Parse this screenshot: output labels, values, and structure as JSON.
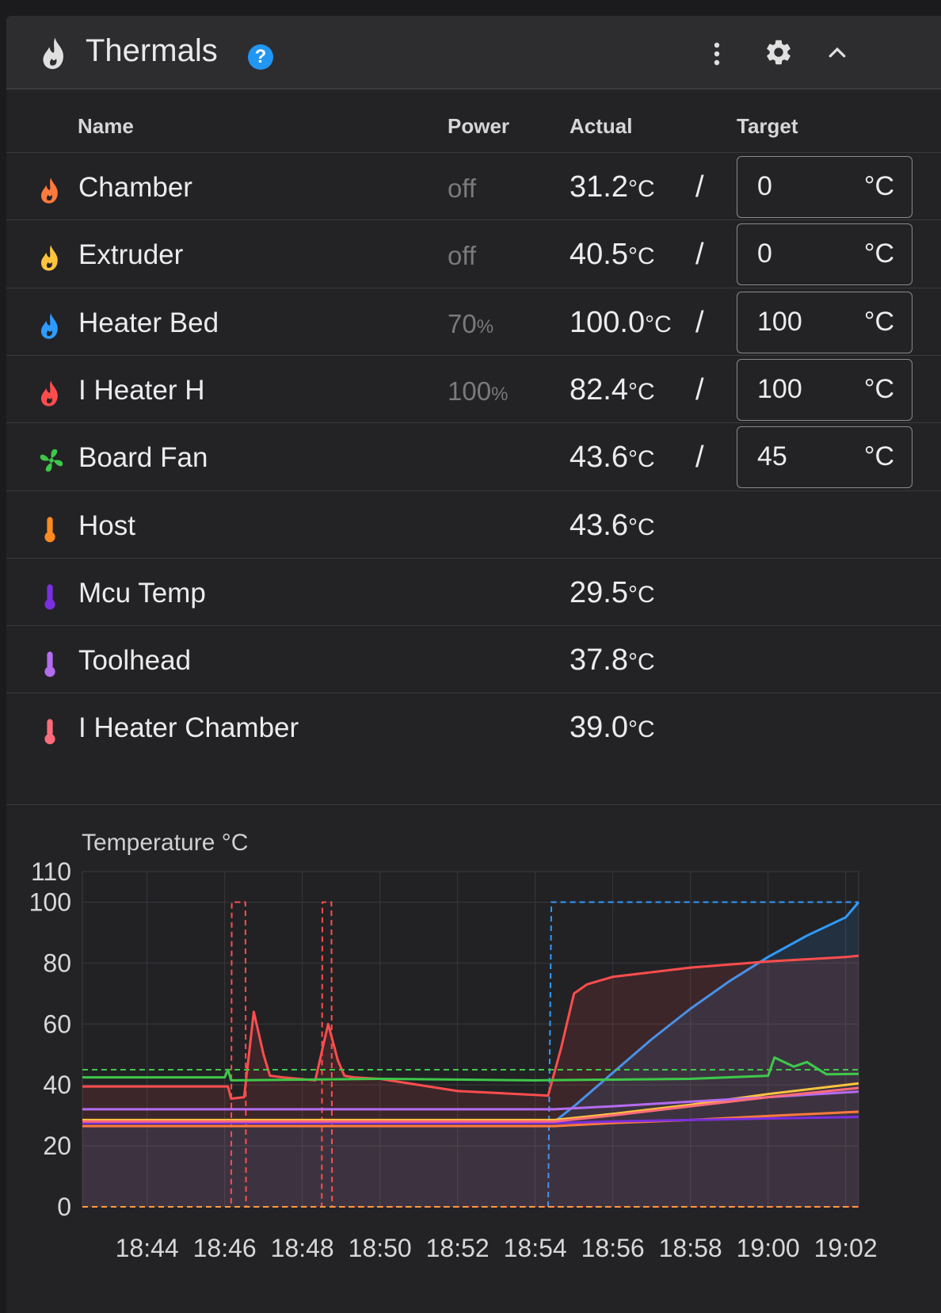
{
  "header": {
    "title": "Thermals",
    "help_icon": "help-circle-icon",
    "menu_icon": "dots-vertical-icon",
    "settings_icon": "gear-icon",
    "collapse_icon": "chevron-up-icon"
  },
  "columns": {
    "name": "Name",
    "power": "Power",
    "actual": "Actual",
    "target": "Target"
  },
  "rows": [
    {
      "name": "Chamber",
      "icon": "fire-icon",
      "color": "#ff7a3d",
      "power": "off",
      "power_unit": "",
      "actual": "31.2",
      "unit": "°C",
      "slash": "/",
      "target": "0",
      "target_unit": "°C"
    },
    {
      "name": "Extruder",
      "icon": "fire-icon",
      "color": "#ffc43d",
      "power": "off",
      "power_unit": "",
      "actual": "40.5",
      "unit": "°C",
      "slash": "/",
      "target": "0",
      "target_unit": "°C"
    },
    {
      "name": "Heater Bed",
      "icon": "fire-icon",
      "color": "#2f9bff",
      "power": "70",
      "power_unit": "%",
      "actual": "100.0",
      "unit": "°C",
      "slash": "/",
      "target": "100",
      "target_unit": "°C"
    },
    {
      "name": "I Heater H",
      "icon": "fire-icon",
      "color": "#ff4d4d",
      "power": "100",
      "power_unit": "%",
      "actual": "82.4",
      "unit": "°C",
      "slash": "/",
      "target": "100",
      "target_unit": "°C"
    },
    {
      "name": "Board Fan",
      "icon": "fan-icon",
      "color": "#3ec94a",
      "power": "",
      "power_unit": "",
      "actual": "43.6",
      "unit": "°C",
      "slash": "/",
      "target": "45",
      "target_unit": "°C"
    },
    {
      "name": "Host",
      "icon": "thermometer-icon",
      "color": "#ff8a1f",
      "power": "",
      "power_unit": "",
      "actual": "43.6",
      "unit": "°C"
    },
    {
      "name": "Mcu Temp",
      "icon": "thermometer-icon",
      "color": "#7a2fe0",
      "power": "",
      "power_unit": "",
      "actual": "29.5",
      "unit": "°C"
    },
    {
      "name": "Toolhead",
      "icon": "thermometer-icon",
      "color": "#b46cf0",
      "power": "",
      "power_unit": "",
      "actual": "37.8",
      "unit": "°C"
    },
    {
      "name": "I Heater Chamber",
      "icon": "thermometer-icon",
      "color": "#ff6b7a",
      "power": "",
      "power_unit": "",
      "actual": "39.0",
      "unit": "°C"
    }
  ],
  "chart_data": {
    "type": "line",
    "ylabel": "Temperature °C",
    "ylim": [
      0,
      110
    ],
    "yticks": [
      0,
      20,
      40,
      60,
      80,
      100,
      110
    ],
    "xlim": [
      "18:42:20",
      "19:02:20"
    ],
    "xticks": [
      "18:44",
      "18:46",
      "18:48",
      "18:50",
      "18:52",
      "18:54",
      "18:56",
      "18:58",
      "19:00",
      "19:02"
    ],
    "grid": true,
    "series": [
      {
        "name": "Heater Bed",
        "color": "#2f9bff",
        "style": "solid",
        "fill": true,
        "x": [
          "18:42:20",
          "18:54:30",
          "18:55",
          "18:56",
          "18:57",
          "18:58",
          "18:59",
          "19:00",
          "19:01",
          "19:02",
          "19:02:20"
        ],
        "y": [
          28,
          28,
          33,
          44,
          55,
          65,
          74,
          82,
          89,
          95,
          100
        ]
      },
      {
        "name": "Heater Bed target",
        "color": "#2f9bff",
        "style": "dashed",
        "x": [
          "18:42:20",
          "18:54:20",
          "18:54:25",
          "19:02:20"
        ],
        "y": [
          0,
          0,
          100,
          100
        ]
      },
      {
        "name": "I Heater H",
        "color": "#ff4d4d",
        "style": "solid",
        "fill": true,
        "x": [
          "18:42:20",
          "18:46:05",
          "18:46:10",
          "18:46:30",
          "18:46:45",
          "18:47:00",
          "18:47:10",
          "18:47:30",
          "18:48:20",
          "18:48:40",
          "18:48:55",
          "18:49:05",
          "18:49:20",
          "18:50",
          "18:52",
          "18:54:20",
          "18:54:40",
          "18:55:00",
          "18:55:20",
          "18:56",
          "18:58",
          "19:00",
          "19:02",
          "19:02:20"
        ],
        "y": [
          39.5,
          39.5,
          35.5,
          36,
          64,
          50,
          43,
          42.5,
          41.5,
          60,
          48,
          43,
          42.5,
          42,
          38,
          36.5,
          52,
          70,
          73,
          75.5,
          78.5,
          80.5,
          82,
          82.4
        ]
      },
      {
        "name": "I Heater H target",
        "color": "#ff4d4d",
        "style": "dashed",
        "x": [
          "18:42:20",
          "18:46:10",
          "18:46:11",
          "18:46:32",
          "18:46:33",
          "18:48:30",
          "18:48:31",
          "18:48:45",
          "18:48:46",
          "19:02:20"
        ],
        "y": [
          0,
          0,
          100,
          100,
          0,
          0,
          100,
          100,
          0,
          0
        ]
      },
      {
        "name": "Board Fan",
        "color": "#3ec94a",
        "style": "solid",
        "x": [
          "18:42:20",
          "18:46:00",
          "18:46:05",
          "18:46:10",
          "18:50",
          "18:54",
          "18:58",
          "19:00",
          "19:00:10",
          "19:00:40",
          "19:01",
          "19:01:30",
          "19:02:20"
        ],
        "y": [
          42.5,
          42.5,
          45,
          41.5,
          42,
          41.5,
          42,
          43,
          49,
          46,
          47.5,
          43.5,
          43.6
        ]
      },
      {
        "name": "Board Fan target",
        "color": "#3ec94a",
        "style": "dashed",
        "x": [
          "18:42:20",
          "19:02:20"
        ],
        "y": [
          45,
          45
        ]
      },
      {
        "name": "Extruder",
        "color": "#ffc43d",
        "style": "solid",
        "x": [
          "18:42:20",
          "18:46:05",
          "18:54:30",
          "18:56",
          "18:58",
          "19:00",
          "19:02:20"
        ],
        "y": [
          28.5,
          28.5,
          28.5,
          30.5,
          33.5,
          37,
          40.5
        ]
      },
      {
        "name": "Chamber",
        "color": "#ff7a3d",
        "style": "solid",
        "x": [
          "18:42:20",
          "18:54:30",
          "18:56",
          "18:58",
          "19:00",
          "19:02:20"
        ],
        "y": [
          26.5,
          26.5,
          27.5,
          28.5,
          29.8,
          31.2
        ]
      },
      {
        "name": "Toolhead",
        "color": "#b46cf0",
        "style": "solid",
        "x": [
          "18:42:20",
          "18:54:30",
          "18:56",
          "18:58",
          "19:00",
          "19:02:20"
        ],
        "y": [
          32,
          32,
          33,
          34.5,
          36,
          37.8
        ]
      },
      {
        "name": "Mcu Temp",
        "color": "#7a2fe0",
        "style": "solid",
        "x": [
          "18:42:20",
          "18:54:30",
          "18:56",
          "18:58",
          "19:00",
          "19:02:20"
        ],
        "y": [
          27.5,
          27.5,
          28,
          28.5,
          29,
          29.5
        ]
      },
      {
        "name": "I Heater Chamber",
        "color": "#ff6b7a",
        "style": "solid",
        "x": [
          "18:42:20",
          "18:54:30",
          "18:56",
          "18:58",
          "19:00",
          "19:02:20"
        ],
        "y": [
          28,
          28,
          30,
          33,
          36,
          39
        ]
      },
      {
        "name": "Chamber target",
        "color": "#ff9a3d",
        "style": "dashed",
        "x": [
          "18:42:20",
          "19:02:20"
        ],
        "y": [
          0,
          0
        ]
      }
    ]
  }
}
